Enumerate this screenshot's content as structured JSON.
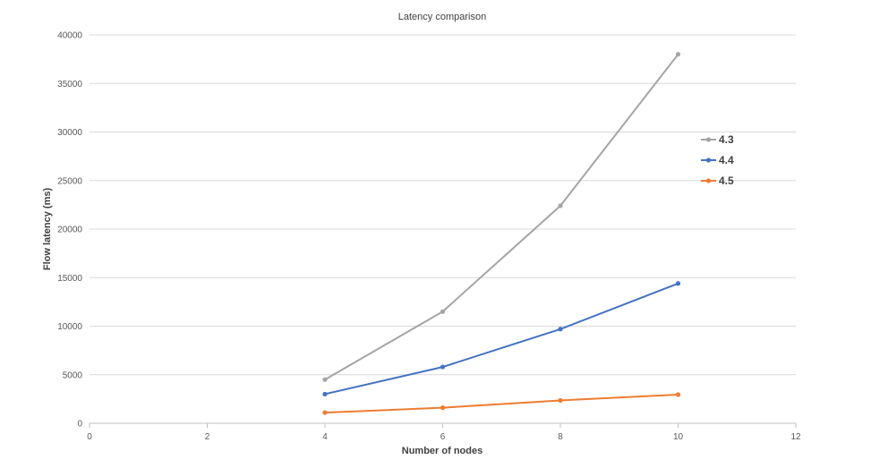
{
  "chart_data": {
    "type": "line",
    "title": "Latency comparison",
    "xlabel": "Number of nodes",
    "ylabel": "Flow latency (ms)",
    "xlim": [
      0,
      12
    ],
    "ylim": [
      0,
      40000
    ],
    "x_ticks": [
      0,
      2,
      4,
      6,
      8,
      10,
      12
    ],
    "y_ticks": [
      0,
      5000,
      10000,
      15000,
      20000,
      25000,
      30000,
      35000,
      40000
    ],
    "grid": "horizontal",
    "legend_position": "right",
    "series": [
      {
        "name": "4.3",
        "color": "#a5a5a5",
        "x": [
          4,
          6,
          8,
          10
        ],
        "y": [
          4500,
          11500,
          22400,
          38000
        ]
      },
      {
        "name": "4.4",
        "color": "#4472c4",
        "x": [
          4,
          6,
          8,
          10
        ],
        "y": [
          3000,
          5800,
          9700,
          14400
        ]
      },
      {
        "name": "4.5",
        "color": "#ed7d31",
        "x": [
          4,
          6,
          8,
          10
        ],
        "y": [
          1100,
          1600,
          2350,
          2950
        ]
      }
    ]
  }
}
